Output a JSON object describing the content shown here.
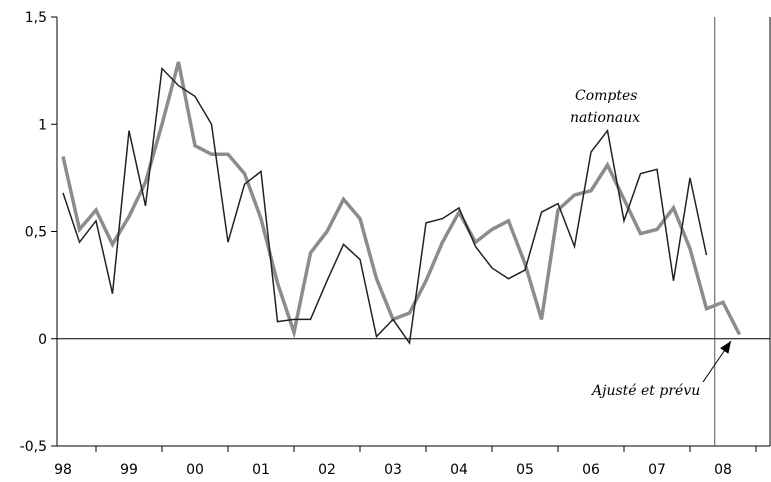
{
  "chart_data": {
    "type": "line",
    "title": "",
    "xlabel": "",
    "ylabel": "",
    "ylim": [
      -0.5,
      1.5
    ],
    "y_ticks": [
      "-0,5",
      "0",
      "0,5",
      "1",
      "1,5"
    ],
    "y_tick_values": [
      -0.5,
      0,
      0.5,
      1,
      1.5
    ],
    "x_ticks": [
      "98",
      "99",
      "00",
      "01",
      "02",
      "03",
      "04",
      "05",
      "06",
      "07",
      "08"
    ],
    "grid": false,
    "vertical_marker_x": 2007.875,
    "annotations": {
      "comptes_line1": "Comptes",
      "comptes_line2": "nationaux",
      "ajuste": "Ajusté et prévu"
    },
    "series": [
      {
        "name": "Comptes nationaux",
        "color": "#222222",
        "x": [
          1998.0,
          1998.25,
          1998.5,
          1998.75,
          1999.0,
          1999.25,
          1999.5,
          1999.75,
          2000.0,
          2000.25,
          2000.5,
          2000.75,
          2001.0,
          2001.25,
          2001.5,
          2001.75,
          2002.0,
          2002.25,
          2002.5,
          2002.75,
          2003.0,
          2003.25,
          2003.5,
          2003.75,
          2004.0,
          2004.25,
          2004.5,
          2004.75,
          2005.0,
          2005.25,
          2005.5,
          2005.75,
          2006.0,
          2006.25,
          2006.5,
          2006.75,
          2007.0,
          2007.25,
          2007.5,
          2007.75
        ],
        "values": [
          0.68,
          0.45,
          0.55,
          0.21,
          0.97,
          0.62,
          1.26,
          1.18,
          1.13,
          1.0,
          0.45,
          0.72,
          0.78,
          0.08,
          0.09,
          0.09,
          0.27,
          0.44,
          0.37,
          0.01,
          0.09,
          -0.02,
          0.54,
          0.56,
          0.61,
          0.43,
          0.33,
          0.28,
          0.32,
          0.59,
          0.63,
          0.43,
          0.87,
          0.97,
          0.55,
          0.77,
          0.79,
          0.27,
          0.75,
          0.39
        ]
      },
      {
        "name": "Ajusté et prévu",
        "color": "#8c8c8c",
        "x": [
          1998.0,
          1998.25,
          1998.5,
          1998.75,
          1999.0,
          1999.25,
          1999.5,
          1999.75,
          2000.0,
          2000.25,
          2000.5,
          2000.75,
          2001.0,
          2001.25,
          2001.5,
          2001.75,
          2002.0,
          2002.25,
          2002.5,
          2002.75,
          2003.0,
          2003.25,
          2003.5,
          2003.75,
          2004.0,
          2004.25,
          2004.5,
          2004.75,
          2005.0,
          2005.25,
          2005.5,
          2005.75,
          2006.0,
          2006.25,
          2006.5,
          2006.75,
          2007.0,
          2007.25,
          2007.5,
          2007.75,
          2008.0,
          2008.25
        ],
        "values": [
          0.85,
          0.51,
          0.6,
          0.44,
          0.57,
          0.73,
          1.0,
          1.29,
          0.9,
          0.86,
          0.86,
          0.77,
          0.56,
          0.26,
          0.03,
          0.4,
          0.5,
          0.65,
          0.56,
          0.28,
          0.09,
          0.12,
          0.27,
          0.45,
          0.59,
          0.45,
          0.51,
          0.55,
          0.35,
          0.09,
          0.6,
          0.67,
          0.69,
          0.81,
          0.65,
          0.49,
          0.51,
          0.61,
          0.42,
          0.14,
          0.17,
          0.02
        ]
      }
    ]
  }
}
